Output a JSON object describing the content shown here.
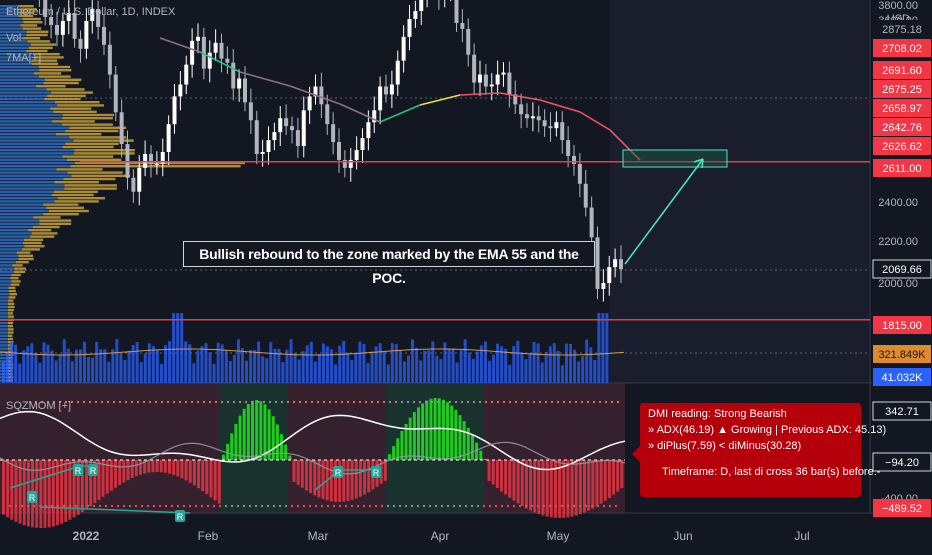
{
  "header": {
    "symbol": "Ethereum / U.S. Dollar, 1D, INDEX",
    "vol_label": "Vol",
    "ma_label": "7MA[+]",
    "osc_label": "SQZMOM [+]",
    "currency": "USD"
  },
  "annotation": {
    "text": "Bullish rebound to the zone marked by the EMA 55 and the POC."
  },
  "dmi_box": {
    "line1": "DMI reading: Strong Bearish",
    "line2": "» ADX(46.19) ▲ Growing | Previous ADX: 45.13)",
    "line3": "» diPlus(7.59) < diMinus(30.28)",
    "line4": "Timeframe: D, last di cross 36 bar(s) before.-"
  },
  "colors": {
    "background": "#131722",
    "up": "#ffffff",
    "down": "#b2b5be",
    "level_line": "#f23645",
    "ema_green": "#26c281",
    "ema_yellow": "#e8e14a",
    "ema_purple": "#8e6f8a",
    "ema_red": "#ef5366",
    "arrow": "#4de8c0",
    "profile_blue": "#2f6fbf",
    "profile_gold": "#c8a23a",
    "volume_blue": "#2962ff",
    "hist_red": "#f23645",
    "hist_green": "#22e61c",
    "dmi_box": "#b5000c",
    "cyan_label": "#26a69a"
  },
  "chart_data": {
    "type": "candlestick",
    "title": "Ethereum / U.S. Dollar, 1D, INDEX",
    "currency": "USD",
    "x_axis_labels": [
      "2022",
      "Feb",
      "Mar",
      "Apr",
      "May",
      "Jun",
      "Jul"
    ],
    "price_axis_ticks": [
      "3800.00",
      "3600.00",
      "2400.00",
      "2200.00",
      "2000.00",
      "-400.00"
    ],
    "ylim": [
      1700,
      3900
    ],
    "price_levels": [
      {
        "label": "2875.18",
        "kind": "axis"
      },
      {
        "label": "2708.02",
        "kind": "red"
      },
      {
        "label": "2691.60",
        "kind": "red"
      },
      {
        "label": "2675.25",
        "kind": "red"
      },
      {
        "label": "2658.97",
        "kind": "red"
      },
      {
        "label": "2642.76",
        "kind": "red"
      },
      {
        "label": "2626.62",
        "kind": "red"
      },
      {
        "label": "2611.00",
        "kind": "red"
      },
      {
        "label": "2069.66",
        "kind": "current"
      },
      {
        "label": "1815.00",
        "kind": "red"
      }
    ],
    "volume_labels": [
      {
        "label": "321.849K",
        "kind": "orange"
      },
      {
        "label": "41.032K",
        "kind": "blue"
      }
    ],
    "oscillator_labels": [
      {
        "label": "342.71",
        "kind": "white"
      },
      {
        "label": "−94.20",
        "kind": "white"
      },
      {
        "label": "−489.52",
        "kind": "red"
      }
    ],
    "horizontal_levels": [
      2611,
      1815
    ],
    "target_zone": {
      "low": 2611,
      "high": 2690
    },
    "last_close": 2069.66,
    "candles_close": [
      3720,
      3700,
      3780,
      3620,
      3540,
      3460,
      3340,
      3300,
      3250,
      3320,
      3360,
      3230,
      3180,
      3320,
      3380,
      3290,
      3200,
      3050,
      2860,
      2700,
      2530,
      2460,
      2580,
      2650,
      2600,
      2600,
      2660,
      2800,
      2940,
      3000,
      3100,
      3220,
      3240,
      3080,
      3160,
      3210,
      3130,
      3110,
      2980,
      3030,
      2910,
      2820,
      2650,
      2660,
      2720,
      2760,
      2830,
      2790,
      2770,
      2690,
      2870,
      2940,
      2990,
      2900,
      2800,
      2710,
      2620,
      2580,
      2620,
      2670,
      2730,
      2810,
      2870,
      2990,
      2950,
      3000,
      3120,
      3240,
      3330,
      3370,
      3440,
      3520,
      3500,
      3440,
      3490,
      3500,
      3310,
      3280,
      3150,
      3010,
      3050,
      2990,
      3000,
      3050,
      3060,
      2950,
      2900,
      2850,
      2830,
      2840,
      2820,
      2790,
      2780,
      2810,
      2720,
      2640,
      2600,
      2500,
      2380,
      2230,
      1970,
      2000,
      2080,
      2120,
      2069.66
    ]
  }
}
